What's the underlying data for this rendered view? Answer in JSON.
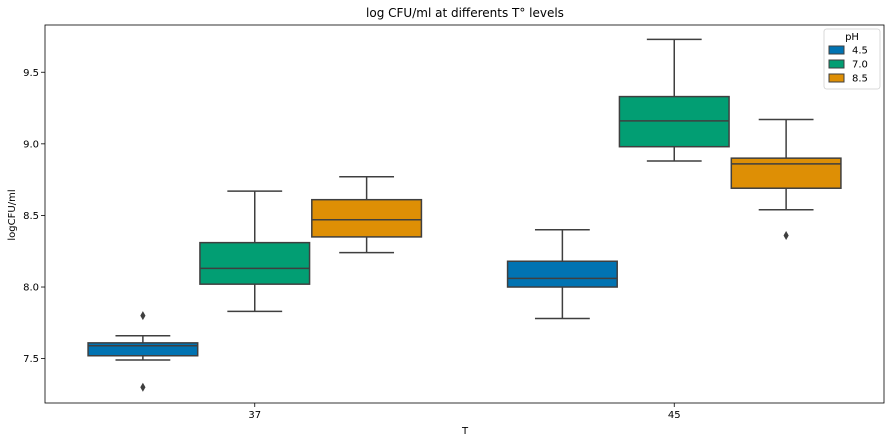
{
  "chart_data": {
    "type": "box",
    "title": "log CFU/ml at differents T° levels",
    "xlabel": "T",
    "ylabel": "logCFU/ml",
    "categories": [
      "37",
      "45"
    ],
    "ylim": [
      7.19,
      9.83
    ],
    "yticks": [
      "7.5",
      "8.0",
      "8.5",
      "9.0",
      "9.5"
    ],
    "grid": false,
    "legend": {
      "title": "pH",
      "placement": "top-right"
    },
    "series": [
      {
        "name": "4.5",
        "color": "#0173b2",
        "boxes": [
          {
            "category": "37",
            "whisker_low": 7.49,
            "q1": 7.52,
            "median": 7.59,
            "q3": 7.61,
            "whisker_high": 7.66,
            "outliers": [
              7.8,
              7.3
            ]
          },
          {
            "category": "45",
            "whisker_low": 7.78,
            "q1": 8.0,
            "median": 8.06,
            "q3": 8.18,
            "whisker_high": 8.4,
            "outliers": []
          }
        ]
      },
      {
        "name": "7.0",
        "color": "#029e73",
        "boxes": [
          {
            "category": "37",
            "whisker_low": 7.83,
            "q1": 8.02,
            "median": 8.13,
            "q3": 8.31,
            "whisker_high": 8.67,
            "outliers": []
          },
          {
            "category": "45",
            "whisker_low": 8.88,
            "q1": 8.98,
            "median": 9.16,
            "q3": 9.33,
            "whisker_high": 9.73,
            "outliers": []
          }
        ]
      },
      {
        "name": "8.5",
        "color": "#de8f05",
        "boxes": [
          {
            "category": "37",
            "whisker_low": 8.24,
            "q1": 8.35,
            "median": 8.47,
            "q3": 8.61,
            "whisker_high": 8.77,
            "outliers": []
          },
          {
            "category": "45",
            "whisker_low": 8.54,
            "q1": 8.69,
            "median": 8.86,
            "q3": 8.9,
            "whisker_high": 9.17,
            "outliers": [
              8.36
            ]
          }
        ]
      }
    ]
  }
}
